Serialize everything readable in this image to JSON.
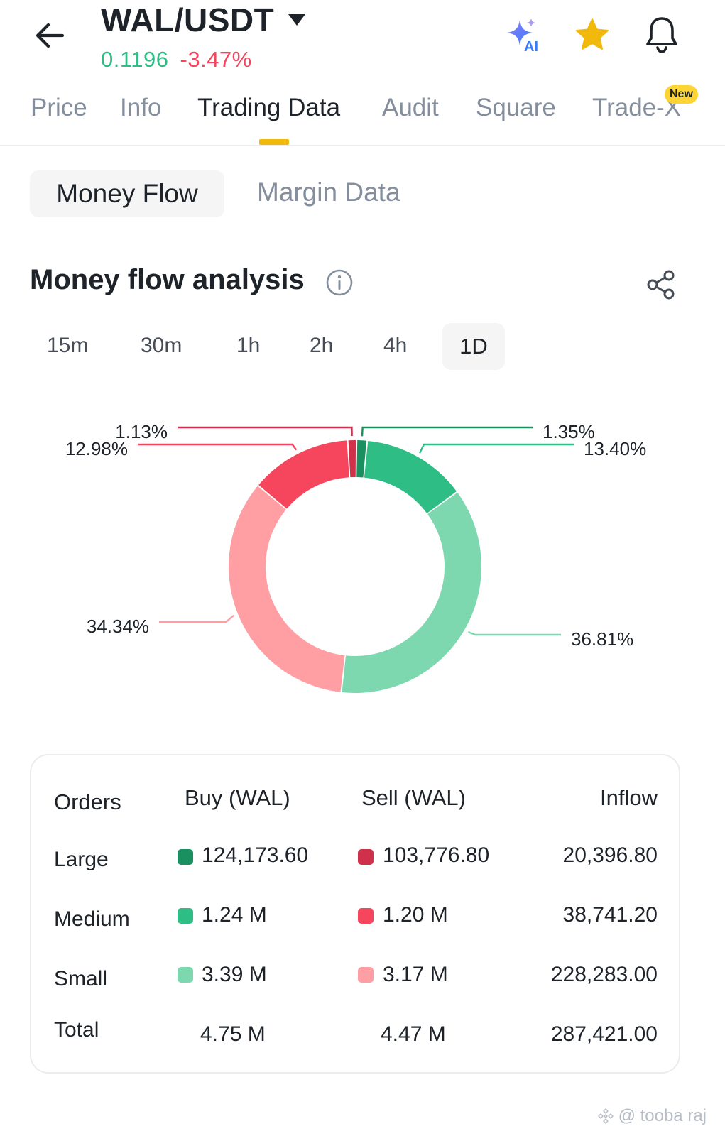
{
  "header": {
    "pair": "WAL/USDT",
    "price": "0.1196",
    "change": "-3.47%"
  },
  "tabs": [
    {
      "label": "Price"
    },
    {
      "label": "Info"
    },
    {
      "label": "Trading Data",
      "active": true
    },
    {
      "label": "Audit"
    },
    {
      "label": "Square"
    },
    {
      "label": "Trade-X",
      "badge": "New"
    }
  ],
  "subtabs": {
    "active": "Money Flow",
    "other": "Margin Data"
  },
  "section": {
    "title": "Money flow analysis"
  },
  "time_tabs": [
    "15m",
    "30m",
    "1h",
    "2h",
    "4h",
    "1D"
  ],
  "active_time": "1D",
  "chart_data": {
    "type": "pie",
    "style": "donut",
    "slices": [
      {
        "label": "1.35%",
        "value": 1.35,
        "color": "#1a8f5f"
      },
      {
        "label": "13.40%",
        "value": 13.4,
        "color": "#2ebd85"
      },
      {
        "label": "36.81%",
        "value": 36.81,
        "color": "#7dd8b0"
      },
      {
        "label": "34.34%",
        "value": 34.34,
        "color": "#ff9ea3"
      },
      {
        "label": "12.98%",
        "value": 12.98,
        "color": "#f6465d"
      },
      {
        "label": "1.13%",
        "value": 1.13,
        "color": "#cf304a"
      }
    ]
  },
  "table": {
    "headers": {
      "orders": "Orders",
      "buy": "Buy (WAL)",
      "sell": "Sell (WAL)",
      "inflow": "Inflow"
    },
    "rows": [
      {
        "label": "Large",
        "buy": "124,173.60",
        "sell": "103,776.80",
        "inflow": "20,396.80",
        "buy_color": "#1a8f5f",
        "sell_color": "#cf304a"
      },
      {
        "label": "Medium",
        "buy": "1.24 M",
        "sell": "1.20 M",
        "inflow": "38,741.20",
        "buy_color": "#2ebd85",
        "sell_color": "#f6465d"
      },
      {
        "label": "Small",
        "buy": "3.39 M",
        "sell": "3.17 M",
        "inflow": "228,283.00",
        "buy_color": "#7dd8b0",
        "sell_color": "#ff9ea3"
      },
      {
        "label": "Total",
        "buy": "4.75 M",
        "sell": "4.47 M",
        "inflow": "287,421.00"
      }
    ]
  },
  "watermark": "@ tooba raj"
}
